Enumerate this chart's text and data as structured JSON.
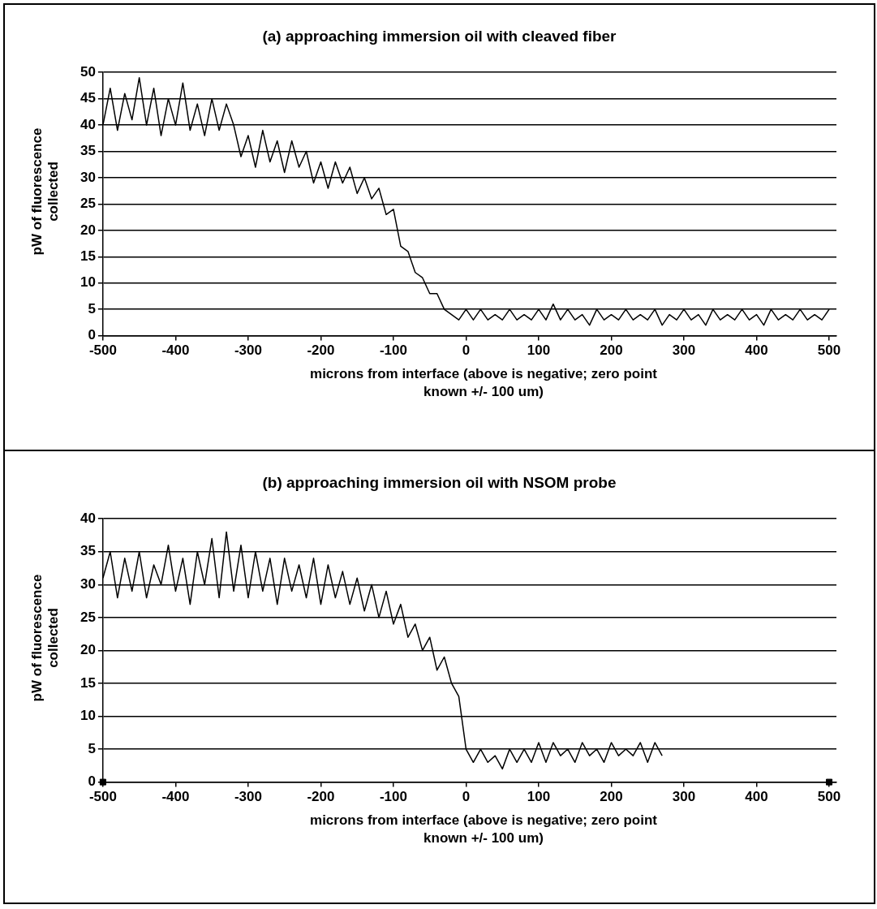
{
  "chart_data": [
    {
      "type": "line",
      "title": "(a) approaching immersion oil with cleaved fiber",
      "xlabel": "microns from interface (above is negative; zero point known +/- 100 um)",
      "ylabel": "pW of fluorescence collected",
      "xlim": [
        -500,
        510
      ],
      "xticks": [
        -500,
        -400,
        -300,
        -200,
        -100,
        0,
        100,
        200,
        300,
        400,
        500
      ],
      "ylim": [
        0,
        50
      ],
      "yticks": [
        0,
        5,
        10,
        15,
        20,
        25,
        30,
        35,
        40,
        45,
        50
      ],
      "grid": "y",
      "marker": "none",
      "series": [
        {
          "color": "#000000",
          "x": [
            -500,
            -490,
            -480,
            -470,
            -460,
            -450,
            -440,
            -430,
            -420,
            -410,
            -400,
            -390,
            -380,
            -370,
            -360,
            -350,
            -340,
            -330,
            -320,
            -310,
            -300,
            -290,
            -280,
            -270,
            -260,
            -250,
            -240,
            -230,
            -220,
            -210,
            -200,
            -190,
            -180,
            -170,
            -160,
            -150,
            -140,
            -130,
            -120,
            -110,
            -100,
            -90,
            -80,
            -70,
            -60,
            -50,
            -40,
            -30,
            -20,
            -10,
            0,
            10,
            20,
            30,
            40,
            50,
            60,
            70,
            80,
            90,
            100,
            110,
            120,
            130,
            140,
            150,
            160,
            170,
            180,
            190,
            200,
            210,
            220,
            230,
            240,
            250,
            260,
            270,
            280,
            290,
            300,
            310,
            320,
            330,
            340,
            350,
            360,
            370,
            380,
            390,
            400,
            410,
            420,
            430,
            440,
            450,
            460,
            470,
            480,
            490,
            500
          ],
          "values": [
            40,
            47,
            39,
            46,
            41,
            49,
            40,
            47,
            38,
            45,
            40,
            48,
            39,
            44,
            38,
            45,
            39,
            44,
            40,
            34,
            38,
            32,
            39,
            33,
            37,
            31,
            37,
            32,
            35,
            29,
            33,
            28,
            33,
            29,
            32,
            27,
            30,
            26,
            28,
            23,
            24,
            17,
            16,
            12,
            11,
            8,
            8,
            5,
            4,
            3,
            5,
            3,
            5,
            3,
            4,
            3,
            5,
            3,
            4,
            3,
            5,
            3,
            6,
            3,
            5,
            3,
            4,
            2,
            5,
            3,
            4,
            3,
            5,
            3,
            4,
            3,
            5,
            2,
            4,
            3,
            5,
            3,
            4,
            2,
            5,
            3,
            4,
            3,
            5,
            3,
            4,
            2,
            5,
            3,
            4,
            3,
            5,
            3,
            4,
            3,
            5
          ]
        }
      ]
    },
    {
      "type": "line",
      "title": "(b) approaching immersion oil with NSOM probe",
      "xlabel": "microns from interface (above is negative; zero point known +/- 100 um)",
      "ylabel": "pW of fluorescence collected",
      "xlim": [
        -500,
        510
      ],
      "xticks": [
        -500,
        -400,
        -300,
        -200,
        -100,
        0,
        100,
        200,
        300,
        400,
        500
      ],
      "ylim": [
        0,
        40
      ],
      "yticks": [
        0,
        5,
        10,
        15,
        20,
        25,
        30,
        35,
        40
      ],
      "grid": "y",
      "marker": "none",
      "series": [
        {
          "color": "#000000",
          "x": [
            -500,
            -490,
            -480,
            -470,
            -460,
            -450,
            -440,
            -430,
            -420,
            -410,
            -400,
            -390,
            -380,
            -370,
            -360,
            -350,
            -340,
            -330,
            -320,
            -310,
            -300,
            -290,
            -280,
            -270,
            -260,
            -250,
            -240,
            -230,
            -220,
            -210,
            -200,
            -190,
            -180,
            -170,
            -160,
            -150,
            -140,
            -130,
            -120,
            -110,
            -100,
            -90,
            -80,
            -70,
            -60,
            -50,
            -40,
            -30,
            -20,
            -10,
            0,
            10,
            20,
            30,
            40,
            50,
            60,
            70,
            80,
            90,
            100,
            110,
            120,
            130,
            140,
            150,
            160,
            170,
            180,
            190,
            200,
            210,
            220,
            230,
            240,
            250,
            260,
            270
          ],
          "values": [
            31,
            35,
            28,
            34,
            29,
            35,
            28,
            33,
            30,
            36,
            29,
            34,
            27,
            35,
            30,
            37,
            28,
            38,
            29,
            36,
            28,
            35,
            29,
            34,
            27,
            34,
            29,
            33,
            28,
            34,
            27,
            33,
            28,
            32,
            27,
            31,
            26,
            30,
            25,
            29,
            24,
            27,
            22,
            24,
            20,
            22,
            17,
            19,
            15,
            13,
            5,
            3,
            5,
            3,
            4,
            2,
            5,
            3,
            5,
            3,
            6,
            3,
            6,
            4,
            5,
            3,
            6,
            4,
            5,
            3,
            6,
            4,
            5,
            4,
            6,
            3,
            6,
            4
          ]
        },
        {
          "type": "scatter",
          "color": "#000000",
          "marker": "square",
          "x": [
            -500,
            500
          ],
          "values": [
            0,
            0
          ]
        }
      ]
    }
  ]
}
